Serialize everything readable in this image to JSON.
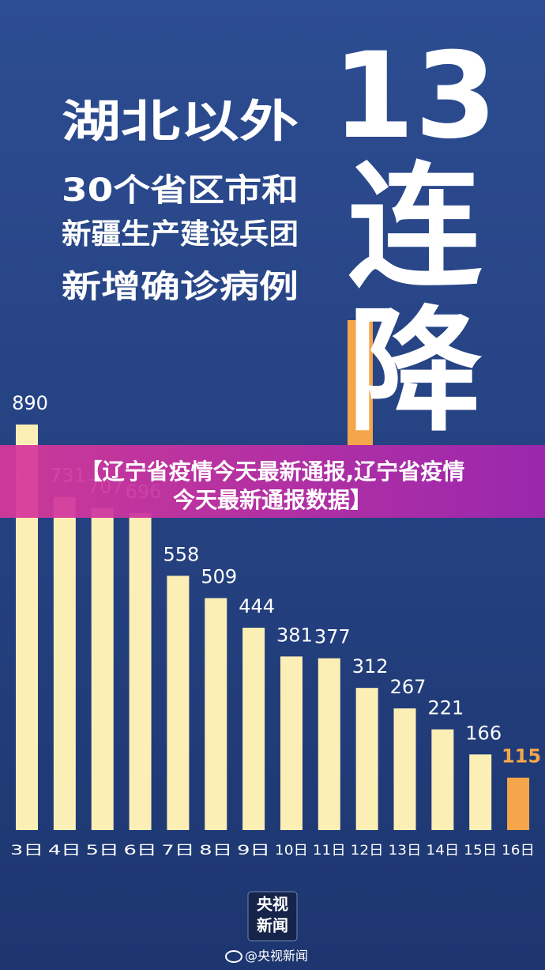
{
  "chart_data": {
    "type": "bar",
    "title_lines": [
      "湖北以外",
      "30个省区市和",
      "新疆生产建设兵团",
      "新增确诊病例"
    ],
    "headline": [
      "13",
      "连",
      "降"
    ],
    "categories": [
      "3日",
      "4日",
      "5日",
      "6日",
      "7日",
      "8日",
      "9日",
      "10日",
      "11日",
      "12日",
      "13日",
      "14日",
      "15日",
      "16日"
    ],
    "values": [
      890,
      731,
      707,
      696,
      558,
      509,
      444,
      381,
      377,
      312,
      267,
      221,
      166,
      115
    ],
    "colors": [
      "#fcefb6",
      "#fcefb6",
      "#fcefb6",
      "#fcefb6",
      "#fcefb6",
      "#fcefb6",
      "#fcefb6",
      "#fcefb6",
      "#fcefb6",
      "#fcefb6",
      "#fcefb6",
      "#fcefb6",
      "#fcefb6",
      "#f5a64a"
    ]
  },
  "banner": {
    "lines": [
      "【辽宁省疫情今天最新通报,辽宁省疫情",
      "今天最新通报数据】"
    ]
  },
  "logo": {
    "lines": [
      "央视",
      "新闻"
    ]
  },
  "credit": "@央视新闻"
}
